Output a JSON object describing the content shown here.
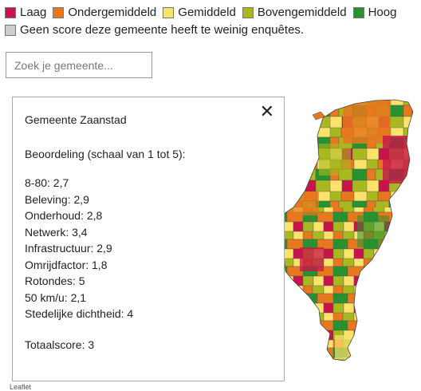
{
  "legend": {
    "items": [
      {
        "label": "Laag",
        "color": "#c8144a"
      },
      {
        "label": "Ondergemiddeld",
        "color": "#e8781e"
      },
      {
        "label": "Gemiddeld",
        "color": "#fbe36b"
      },
      {
        "label": "Bovengemiddeld",
        "color": "#a8b820"
      },
      {
        "label": "Hoog",
        "color": "#27922f"
      }
    ],
    "no_score": {
      "label": "Geen score deze gemeente heeft te weinig enquêtes.",
      "color": "#cccccc"
    }
  },
  "search": {
    "placeholder": "Zoek je gemeente..."
  },
  "popup": {
    "title": "Gemeente Zaanstad",
    "subtitle": "Beoordeling (schaal van 1 tot 5):",
    "scores": [
      "8-80: 2,7",
      "Beleving: 2,9",
      "Onderhoud: 2,8",
      "Netwerk: 3,4",
      "Infrastructuur: 2,9",
      "Omrijdfactor: 1,8",
      "Rotondes: 5",
      "50 km/u: 2,1",
      "Stedelijke dichtheid: 4"
    ],
    "total": "Totaalscore: 3",
    "close_symbol": "✕"
  },
  "attribution": "Leaflet"
}
